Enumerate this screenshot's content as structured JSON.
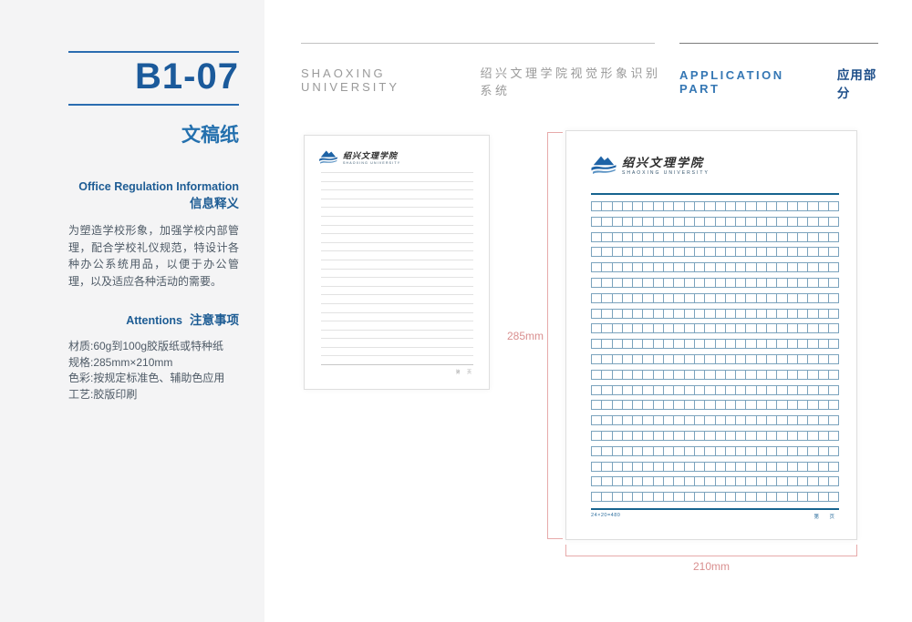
{
  "sidebar": {
    "section_code": "B1-07",
    "page_title": "文稿纸",
    "info_heading_en": "Office Regulation Information",
    "info_heading_zh": "信息释义",
    "info_text": "为塑造学校形象，加强学校内部管理，配合学校礼仪规范，特设计各种办公系统用品，以便于办公管理，以及适应各种活动的需要。",
    "attention_heading_en": "Attentions",
    "attention_heading_zh": "注意事项",
    "specs": [
      "材质:60g到100g胶版纸或特种纸",
      "规格:285mm×210mm",
      "色彩:按规定标准色、辅助色应用",
      "工艺:胶版印刷"
    ]
  },
  "header": {
    "brand_en": "SHAOXING UNIVERSITY",
    "brand_zh": "绍兴文理学院视觉形象识别系统",
    "part_en": "APPLICATION PART",
    "part_zh": "应用部分"
  },
  "letter_paper": {
    "logo_zh": "绍兴文理学院",
    "logo_en": "SHAOXING UNIVERSITY",
    "line_count": 23,
    "footer_right": "第 页"
  },
  "grid_paper": {
    "logo_zh": "绍兴文理学院",
    "logo_en": "SHAOXING UNIVERSITY",
    "rows": 20,
    "columns": 24,
    "footer_left": "24×20=480",
    "footer_right": "第 页"
  },
  "dimensions": {
    "height_label": "285mm",
    "width_label": "210mm"
  },
  "colors": {
    "accent_blue": "#1b5a9b",
    "secondary_blue": "#2470ae",
    "grid_line": "#7ba3bd",
    "grid_rule": "#16648f",
    "dimension_pink": "#e7aaaa",
    "header_gray": "#9a9a9a",
    "sidebar_bg": "#f4f4f5"
  }
}
